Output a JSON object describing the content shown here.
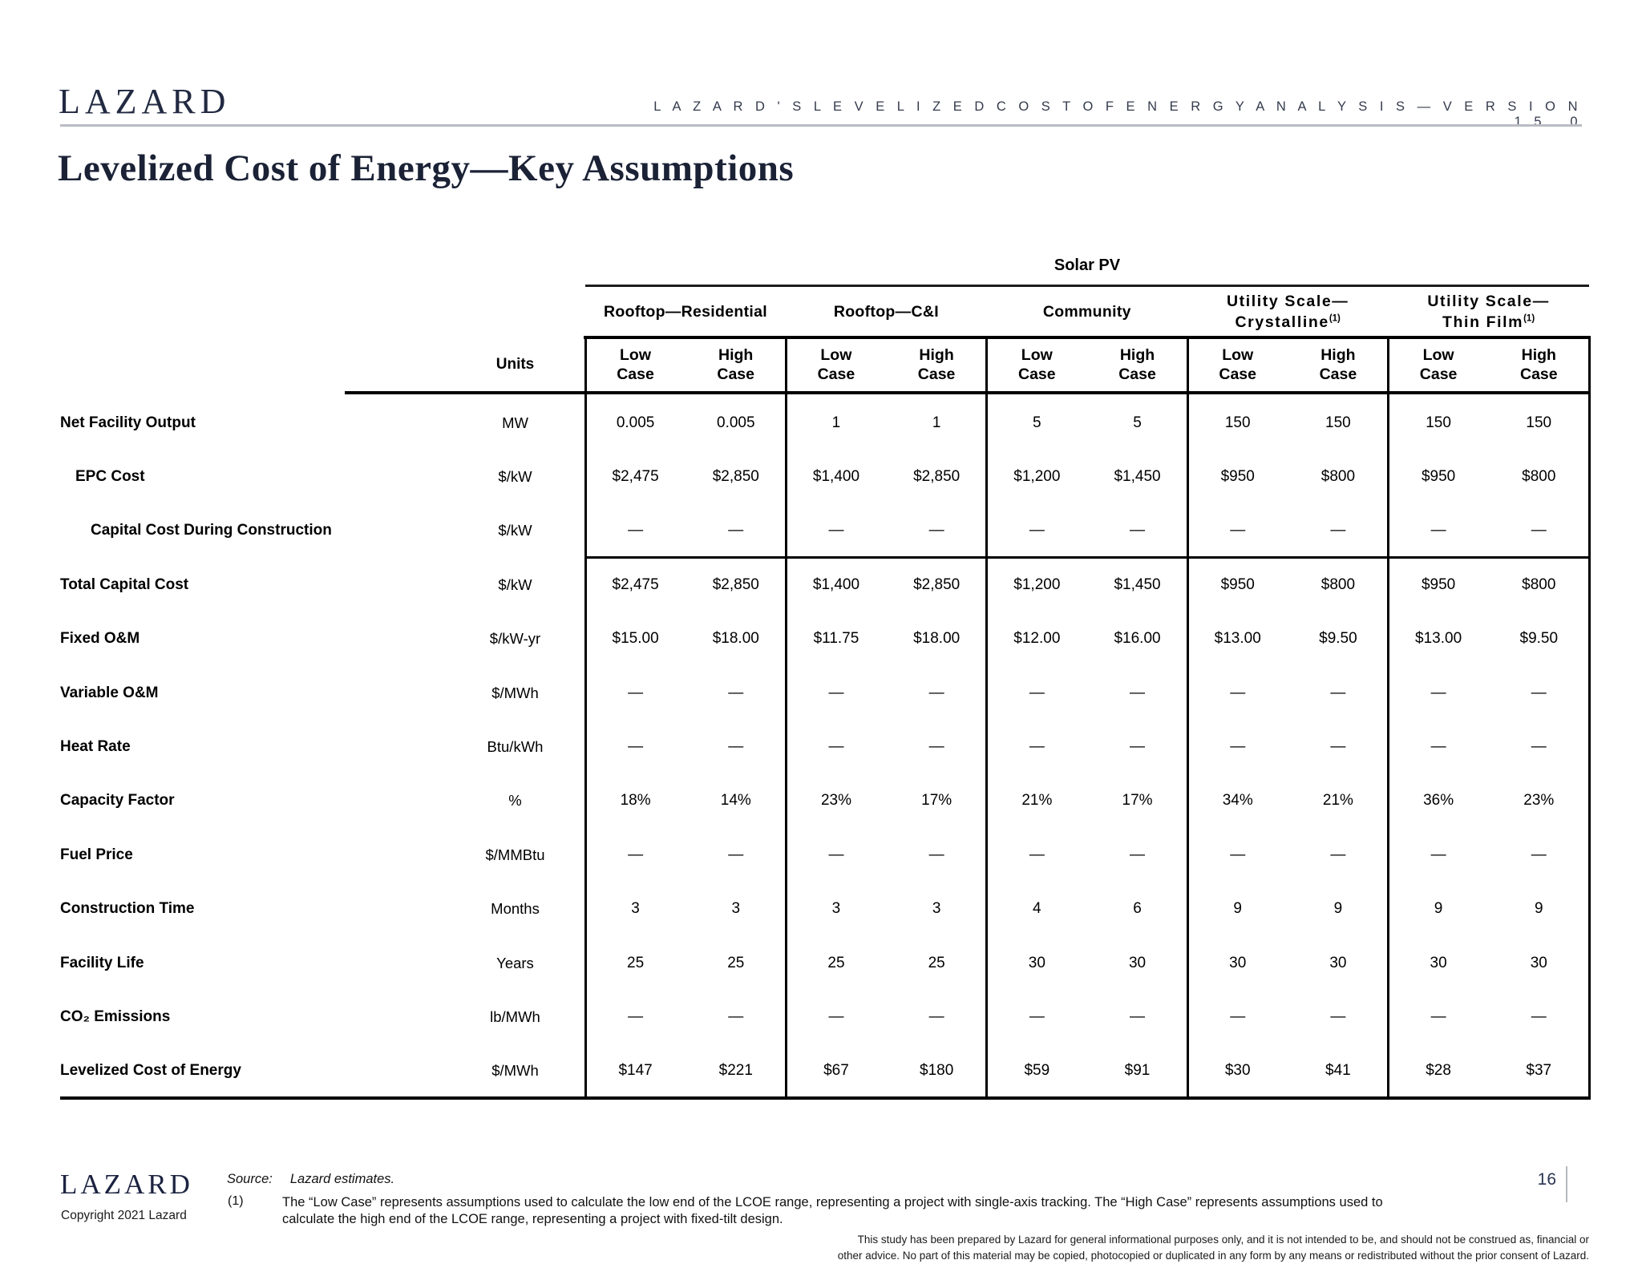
{
  "header": {
    "logo": "LAZARD",
    "right_title": "L A Z A R D ' S   L E V E L I Z E D   C O S T   O F   E N E R G Y   A N A L Y S I S — V E R S I O N   1 5 . 0"
  },
  "title": "Levelized Cost of Energy—Key Assumptions",
  "table": {
    "span_header": "Solar PV",
    "units_header": "Units",
    "groups": [
      {
        "line1": "Rooftop—Residential",
        "line2": "",
        "footnote": ""
      },
      {
        "line1": "Rooftop—C&I",
        "line2": "",
        "footnote": ""
      },
      {
        "line1": "Community",
        "line2": "",
        "footnote": ""
      },
      {
        "line1": "Utility Scale—",
        "line2": "Crystalline",
        "footnote": "(1)"
      },
      {
        "line1": "Utility Scale—",
        "line2": "Thin Film",
        "footnote": "(1)"
      }
    ],
    "case_headers": {
      "low": "Low\nCase",
      "high": "High\nCase"
    },
    "rows": [
      {
        "label": "Net Facility Output",
        "indent": 0,
        "units": "MW",
        "values": [
          "0.005",
          "0.005",
          "1",
          "1",
          "5",
          "5",
          "150",
          "150",
          "150",
          "150"
        ]
      },
      {
        "label": "EPC Cost",
        "indent": 1,
        "units": "$/kW",
        "values": [
          "$2,475",
          "$2,850",
          "$1,400",
          "$2,850",
          "$1,200",
          "$1,450",
          "$950",
          "$800",
          "$950",
          "$800"
        ]
      },
      {
        "label": "Capital Cost During Construction",
        "indent": 2,
        "units": "$/kW",
        "values": [
          "—",
          "—",
          "—",
          "—",
          "—",
          "—",
          "—",
          "—",
          "—",
          "—"
        ]
      },
      {
        "label": "Total Capital Cost",
        "indent": 0,
        "units": "$/kW",
        "values": [
          "$2,475",
          "$2,850",
          "$1,400",
          "$2,850",
          "$1,200",
          "$1,450",
          "$950",
          "$800",
          "$950",
          "$800"
        ]
      },
      {
        "label": "Fixed O&M",
        "indent": 0,
        "units": "$/kW-yr",
        "values": [
          "$15.00",
          "$18.00",
          "$11.75",
          "$18.00",
          "$12.00",
          "$16.00",
          "$13.00",
          "$9.50",
          "$13.00",
          "$9.50"
        ]
      },
      {
        "label": "Variable O&M",
        "indent": 0,
        "units": "$/MWh",
        "values": [
          "—",
          "—",
          "—",
          "—",
          "—",
          "—",
          "—",
          "—",
          "—",
          "—"
        ]
      },
      {
        "label": "Heat Rate",
        "indent": 0,
        "units": "Btu/kWh",
        "values": [
          "—",
          "—",
          "—",
          "—",
          "—",
          "—",
          "—",
          "—",
          "—",
          "—"
        ]
      },
      {
        "label": "Capacity Factor",
        "indent": 0,
        "units": "%",
        "values": [
          "18%",
          "14%",
          "23%",
          "17%",
          "21%",
          "17%",
          "34%",
          "21%",
          "36%",
          "23%"
        ]
      },
      {
        "label": "Fuel Price",
        "indent": 0,
        "units": "$/MMBtu",
        "values": [
          "—",
          "—",
          "—",
          "—",
          "—",
          "—",
          "—",
          "—",
          "—",
          "—"
        ]
      },
      {
        "label": "Construction Time",
        "indent": 0,
        "units": "Months",
        "values": [
          "3",
          "3",
          "3",
          "3",
          "4",
          "6",
          "9",
          "9",
          "9",
          "9"
        ]
      },
      {
        "label": "Facility Life",
        "indent": 0,
        "units": "Years",
        "values": [
          "25",
          "25",
          "25",
          "25",
          "30",
          "30",
          "30",
          "30",
          "30",
          "30"
        ]
      },
      {
        "label": "CO₂ Emissions",
        "indent": 0,
        "units": "lb/MWh",
        "values": [
          "—",
          "—",
          "—",
          "—",
          "—",
          "—",
          "—",
          "—",
          "—",
          "—"
        ]
      },
      {
        "label": "Levelized Cost of Energy",
        "indent": 0,
        "units": "$/MWh",
        "values": [
          "$147",
          "$221",
          "$67",
          "$180",
          "$59",
          "$91",
          "$30",
          "$41",
          "$28",
          "$37"
        ]
      }
    ]
  },
  "footer": {
    "logo": "LAZARD",
    "copyright": "Copyright 2021 Lazard",
    "source_label": "Source:",
    "source_text": "Lazard estimates.",
    "footnote_number": "(1)",
    "footnote_text": "The “Low Case” represents assumptions used to calculate the low end of the LCOE range, representing a project with single-axis tracking. The “High Case” represents assumptions used to\ncalculate the high end of the LCOE range, representing a project with fixed-tilt design.",
    "disclaimer": "This study has been prepared by Lazard for general informational purposes only, and it is not intended to be, and should not be construed as, financial or\nother advice. No part of this material may be copied, photocopied or duplicated in any form by any means or redistributed without the prior consent of Lazard.",
    "page_number": "16"
  }
}
